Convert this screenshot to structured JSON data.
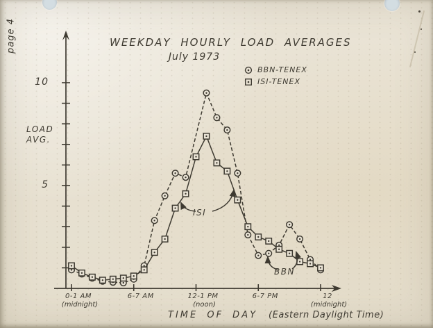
{
  "page": {
    "label": "page 4"
  },
  "chart": {
    "title": "WEEKDAY HOURLY LOAD AVERAGES",
    "subtitle": "July 1973",
    "y_axis": {
      "label_line1": "LOAD",
      "label_line2": "AVG.",
      "labeled_ticks": [
        5,
        10
      ],
      "minor_ticks": [
        1,
        2,
        3,
        4,
        6,
        7,
        8,
        9
      ]
    }
  },
  "legend": {
    "items": [
      {
        "marker": "circle-dot",
        "label": "BBN-TENEX"
      },
      {
        "marker": "square-dot",
        "label": "ISI-TENEX"
      }
    ]
  },
  "annotations": {
    "isi": "ISI",
    "bbn": "BBN"
  },
  "x_axis": {
    "title": "TIME OF DAY",
    "title_suffix": "(Eastern Daylight Time)",
    "ticks": [
      {
        "hour": 0,
        "label": "0-1 AM",
        "sublabel": "(midnight)"
      },
      {
        "hour": 6,
        "label": "6-7 AM",
        "sublabel": ""
      },
      {
        "hour": 12,
        "label": "12-1 PM",
        "sublabel": "(noon)"
      },
      {
        "hour": 18,
        "label": "6-7 PM",
        "sublabel": ""
      },
      {
        "hour": 24,
        "label": "12",
        "sublabel": "(midnight)"
      }
    ]
  },
  "chart_data": {
    "type": "line",
    "title": "WEEKDAY HOURLY LOAD AVERAGES — July 1973",
    "xlabel": "TIME OF DAY (Eastern Daylight Time)",
    "ylabel": "LOAD AVG.",
    "x_hours": [
      0,
      1,
      2,
      3,
      4,
      5,
      6,
      7,
      8,
      9,
      10,
      11,
      12,
      13,
      14,
      15,
      16,
      17,
      18,
      19,
      20,
      21,
      22,
      23,
      24
    ],
    "ylim": [
      0,
      11
    ],
    "grid": false,
    "legend_position": "top-right",
    "series": [
      {
        "name": "BBN-TENEX",
        "marker": "circle-dot",
        "line_style": "dashed",
        "values": [
          0.9,
          0.7,
          0.5,
          0.35,
          0.3,
          0.27,
          0.45,
          1.1,
          3.3,
          4.5,
          5.6,
          5.4,
          null,
          9.5,
          8.3,
          7.7,
          5.6,
          2.6,
          1.6,
          1.7,
          2.1,
          3.1,
          2.4,
          1.4,
          0.9
        ]
      },
      {
        "name": "ISI-TENEX",
        "marker": "square-dot",
        "line_style": "solid",
        "values": [
          1.1,
          0.75,
          0.55,
          0.4,
          0.45,
          0.5,
          0.6,
          0.9,
          1.75,
          2.4,
          3.9,
          4.6,
          6.4,
          7.4,
          6.1,
          5.7,
          4.3,
          3.0,
          2.5,
          2.3,
          1.9,
          1.7,
          1.3,
          1.2,
          1.0
        ]
      }
    ]
  },
  "colors": {
    "ink": "#3e3a31",
    "paper": "#eae4d6",
    "hole_punch": "#d3dde2"
  }
}
